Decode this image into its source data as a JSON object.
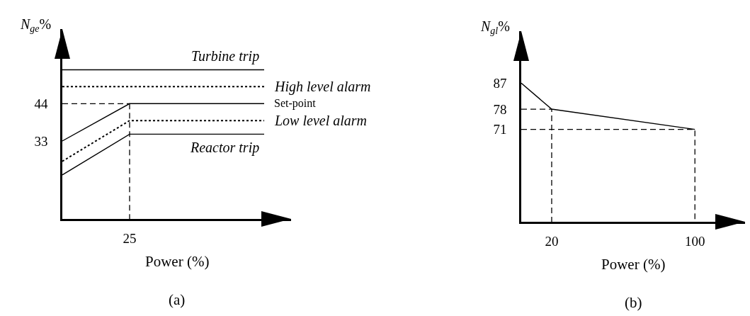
{
  "chart_data": [
    {
      "type": "line",
      "xlabel": "Power (%)",
      "ylabel": "N$_{ge}$%",
      "annotations": [
        "(a)"
      ],
      "categories": [
        null,
        "25",
        null,
        null
      ],
      "ylim": [
        10,
        66
      ],
      "yticks": [
        33,
        44
      ],
      "series": [
        {
          "name": "Turbine trip",
          "color": "#000000",
          "line_style": "solid",
          "values": [
            54,
            54,
            54,
            54
          ]
        },
        {
          "name": "High level alarm",
          "color": "#000000",
          "line_style": "dotted",
          "values": [
            49,
            49,
            49,
            49
          ]
        },
        {
          "name": "Set-point",
          "color": "#000000",
          "line_style": "solid",
          "values": [
            33,
            44,
            44,
            44
          ]
        },
        {
          "name": "Low level alarm",
          "color": "#000000",
          "line_style": "dotted",
          "values": [
            27,
            39,
            39,
            39
          ]
        },
        {
          "name": "Reactor trip",
          "color": "#000000",
          "line_style": "solid",
          "values": [
            23,
            35,
            35,
            35
          ]
        },
        {
          "color": "#000000",
          "line_style": "dashed",
          "values": [
            44,
            44,
            null,
            null
          ]
        },
        {
          "color": "#000000",
          "line_style": "dashed",
          "x": [
            "25",
            "25"
          ],
          "values": [
            44,
            10
          ]
        }
      ]
    },
    {
      "type": "line",
      "xlabel": "Power (%)",
      "ylabel": "N$_{gl}$%",
      "annotations": [
        "(b)"
      ],
      "xlim": [
        3,
        128
      ],
      "ylim": [
        39,
        105
      ],
      "xticks": [
        20,
        100
      ],
      "yticks": [
        71,
        78,
        87
      ],
      "series": [
        {
          "color": "#000000",
          "line_style": "solid",
          "x": [
            3,
            20,
            100
          ],
          "values": [
            87,
            78,
            71
          ]
        },
        {
          "color": "#000000",
          "line_style": "dashed",
          "x": [
            3,
            20,
            20
          ],
          "values": [
            78,
            78,
            39
          ]
        },
        {
          "color": "#000000",
          "line_style": "dashed",
          "x": [
            3,
            100,
            100
          ],
          "values": [
            71,
            71,
            39
          ]
        }
      ]
    }
  ]
}
